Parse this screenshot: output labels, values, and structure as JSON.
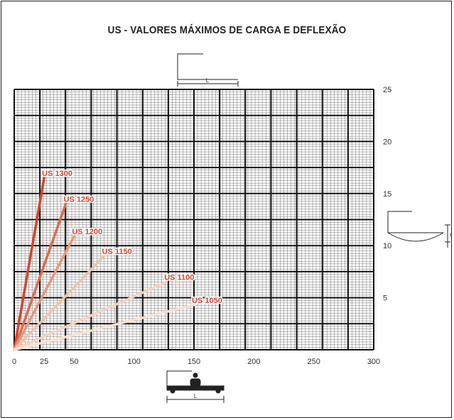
{
  "chart_data": {
    "type": "line",
    "title": "US - VALORES MÁXIMOS DE CARGA E DEFLEXÃO",
    "xlabel": "",
    "ylabel": "",
    "xlim": [
      0,
      300
    ],
    "ylim": [
      0,
      25
    ],
    "x_ticks": [
      0,
      25,
      50,
      100,
      150,
      200,
      250,
      300
    ],
    "y_ticks": [
      5,
      10,
      15,
      20,
      25
    ],
    "grid": true,
    "series": [
      {
        "name": "US 1300",
        "color": "#d5432d",
        "x": [
          0,
          25
        ],
        "y": [
          0,
          16.5
        ]
      },
      {
        "name": "US 1250",
        "color": "#e06a4a",
        "x": [
          0,
          43
        ],
        "y": [
          0,
          14
        ]
      },
      {
        "name": "US 1200",
        "color": "#eb9677",
        "x": [
          0,
          50
        ],
        "y": [
          0,
          10.9
        ]
      },
      {
        "name": "US 1150",
        "color": "#f5c1a8",
        "x": [
          0,
          75
        ],
        "y": [
          0,
          9
        ]
      },
      {
        "name": "US 1100",
        "color": "#f8d2c0",
        "x": [
          0,
          127
        ],
        "y": [
          0,
          6.5
        ]
      },
      {
        "name": "US 1050",
        "color": "#fbe0d2",
        "x": [
          0,
          150
        ],
        "y": [
          0,
          4.3
        ]
      }
    ],
    "label_color": "#d5432d"
  },
  "icons": {
    "top": "cantilever-beam-icon",
    "right": "deflection-icon",
    "bottom": "beam-point-load-icon",
    "span_label": "L",
    "deflection_label": "f"
  }
}
